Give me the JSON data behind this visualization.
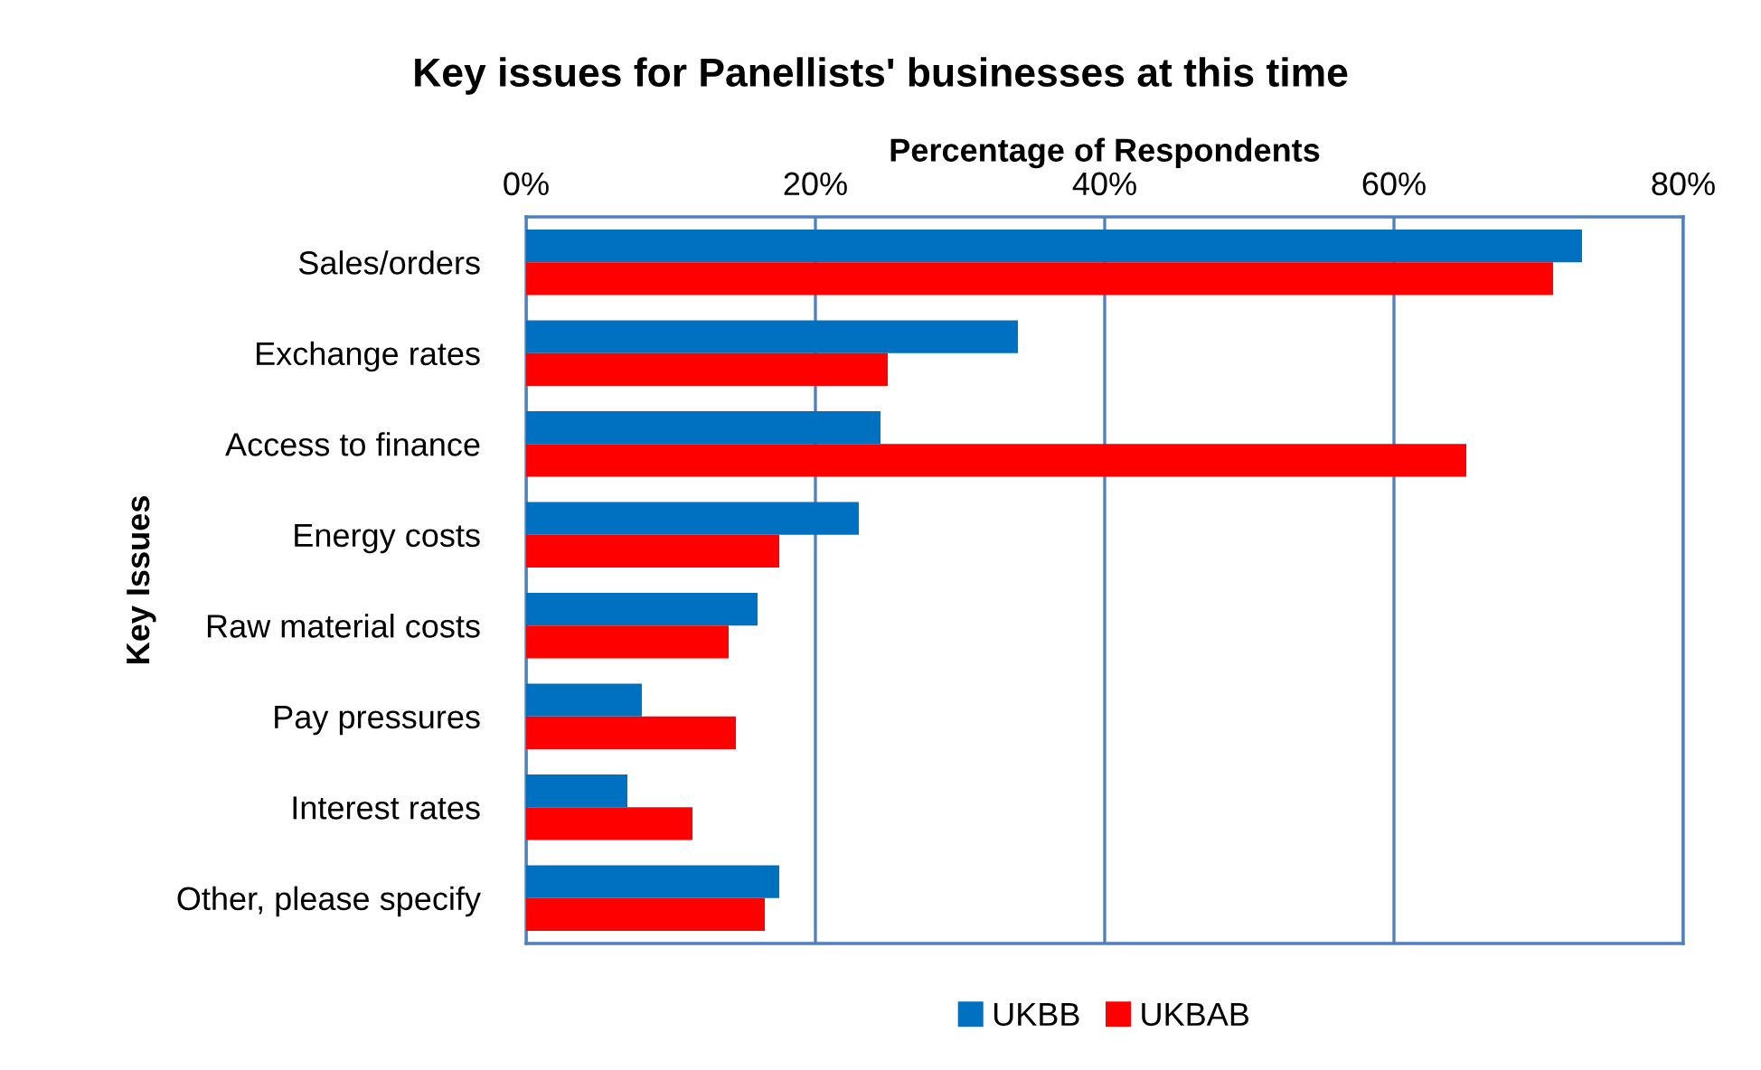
{
  "chart_data": {
    "type": "bar",
    "orientation": "horizontal",
    "title": "Key issues for Panellists' businesses at this time",
    "xlabel": "Percentage of Respondents",
    "ylabel": "Key Issues",
    "categories": [
      "Sales/orders",
      "Exchange rates",
      "Access to finance",
      "Energy costs",
      "Raw material costs",
      "Pay pressures",
      "Interest rates",
      "Other, please specify"
    ],
    "series": [
      {
        "name": "UKBB",
        "color": "#0070c0",
        "values": [
          73,
          34,
          24.5,
          23,
          16,
          8,
          7,
          17.5
        ]
      },
      {
        "name": "UKBAB",
        "color": "#ff0000",
        "values": [
          71,
          25,
          65,
          17.5,
          14,
          14.5,
          11.5,
          16.5
        ]
      }
    ],
    "xlim": [
      0,
      80
    ],
    "xticks": [
      {
        "value": 0,
        "label": "0%"
      },
      {
        "value": 20,
        "label": "20%"
      },
      {
        "value": 40,
        "label": "40%"
      },
      {
        "value": 60,
        "label": "60%"
      },
      {
        "value": 80,
        "label": "80%"
      }
    ],
    "grid": "x",
    "legend": "bottom"
  }
}
